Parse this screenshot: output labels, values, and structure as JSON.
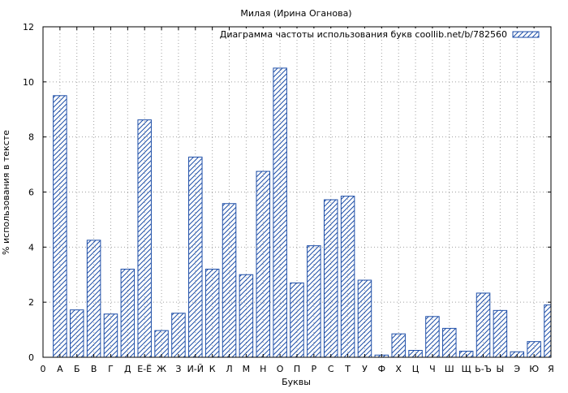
{
  "chart_data": {
    "type": "bar",
    "title": "Милая (Ирина Оганова)",
    "xlabel": "Буквы",
    "ylabel": "% использования в тексте",
    "legend": "Диаграмма частоты использования букв coollib.net/b/782560",
    "legend_position": "top-right",
    "grid": true,
    "ylim": [
      0,
      12
    ],
    "yticks": [
      "0",
      "2",
      "4",
      "6",
      "8",
      "10",
      "12"
    ],
    "categories": [
      "0",
      "А",
      "Б",
      "В",
      "Г",
      "Д",
      "Е-Ё",
      "Ж",
      "З",
      "И-Й",
      "К",
      "Л",
      "М",
      "Н",
      "О",
      "П",
      "Р",
      "С",
      "Т",
      "У",
      "Ф",
      "Х",
      "Ц",
      "Ч",
      "Ш",
      "Щ",
      "Ь-Ъ",
      "Ы",
      "Э",
      "Ю",
      "Я"
    ],
    "values": [
      0,
      9.5,
      1.72,
      4.25,
      1.57,
      3.2,
      8.62,
      0.97,
      1.6,
      7.27,
      3.2,
      5.58,
      3.0,
      6.75,
      10.5,
      2.7,
      4.05,
      5.72,
      5.85,
      2.8,
      0.08,
      0.85,
      0.25,
      1.48,
      1.05,
      0.22,
      2.33,
      1.7,
      0.2,
      0.57,
      1.9
    ],
    "bar_color": "#1f4fa8"
  }
}
